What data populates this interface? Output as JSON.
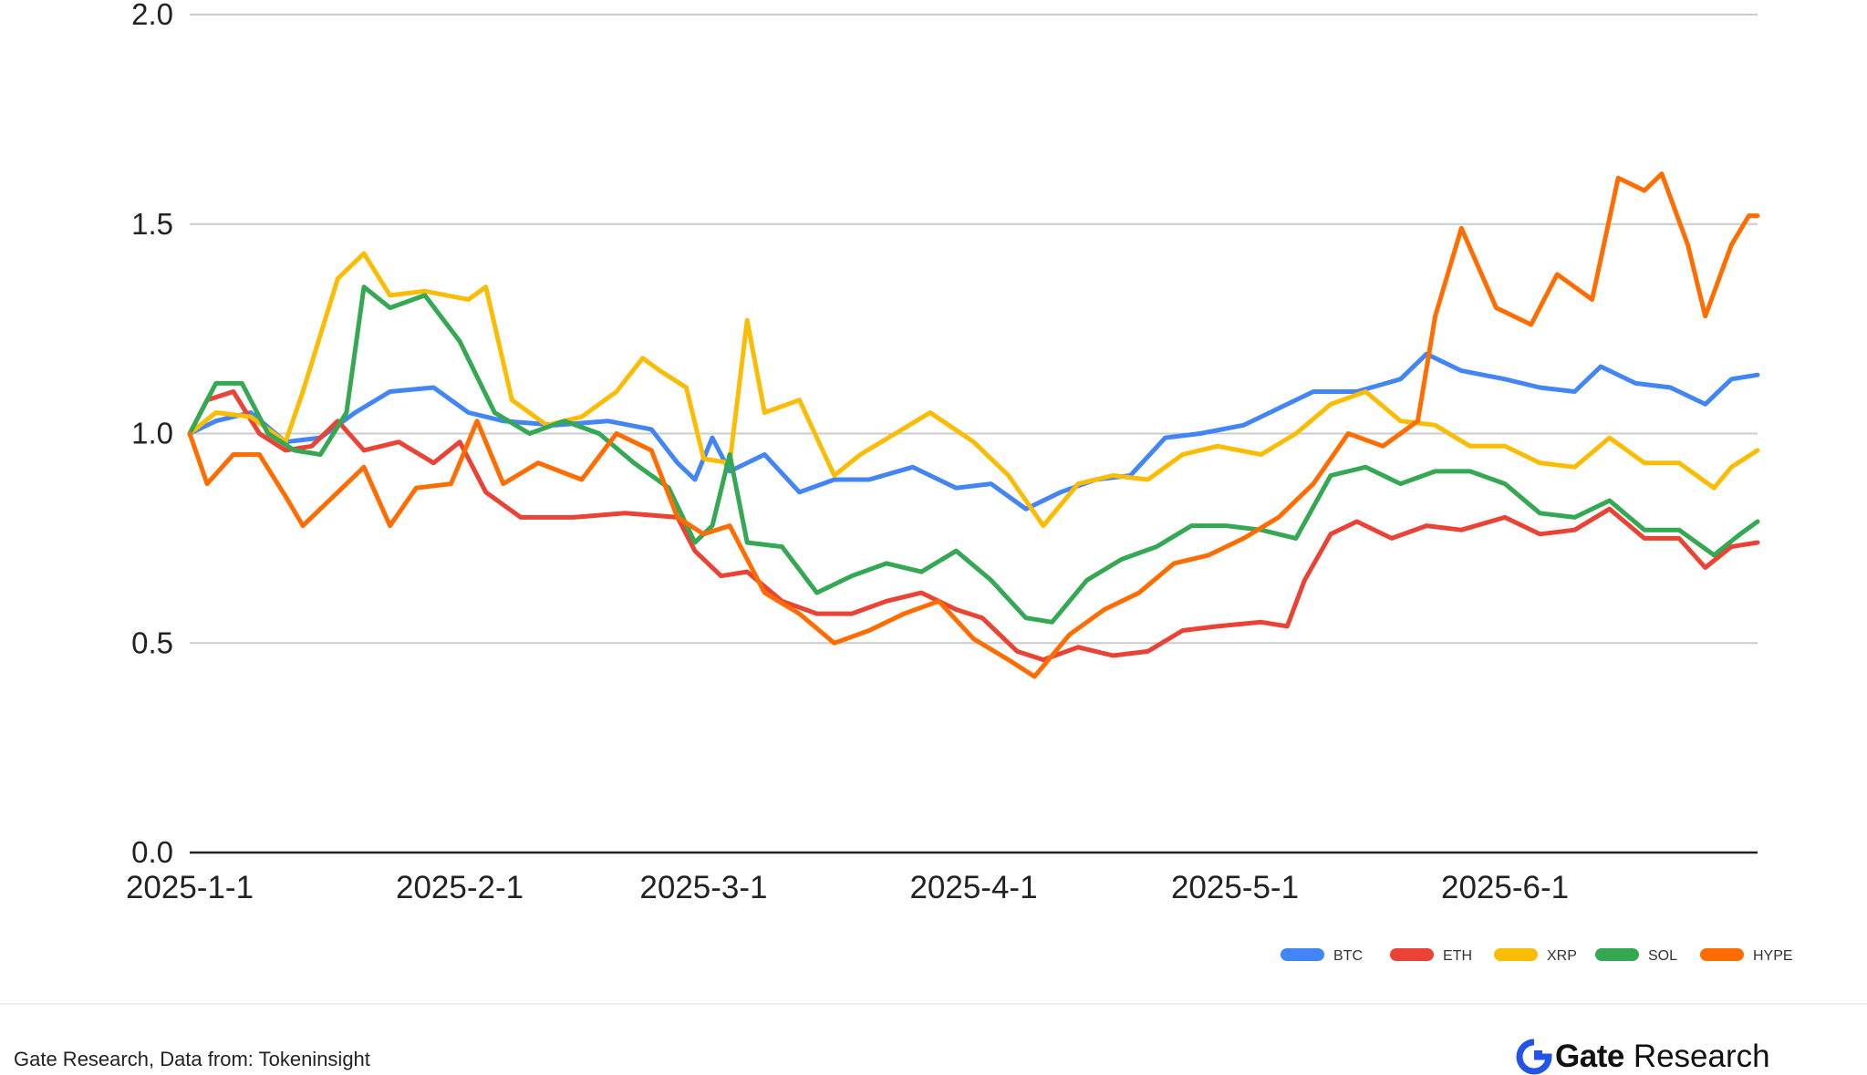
{
  "chart_data": {
    "type": "line",
    "title": "",
    "xlabel": "",
    "ylabel": "",
    "ylim": [
      0,
      2
    ],
    "yticks": [
      "0.0",
      "0.5",
      "1.0",
      "1.5",
      "2.0"
    ],
    "yticks_values": [
      0,
      0.5,
      1.0,
      1.5,
      2.0
    ],
    "xticks": [
      "2025-1-1",
      "2025-2-1",
      "2025-3-1",
      "2025-4-1",
      "2025-5-1",
      "2025-6-1"
    ],
    "xticks_dates": [
      "2025-01-01",
      "2025-02-01",
      "2025-03-01",
      "2025-04-01",
      "2025-05-01",
      "2025-06-01"
    ],
    "xlim": [
      "2025-01-01",
      "2025-06-30"
    ],
    "grid": true,
    "legend_position": "bottom-right",
    "series": [
      {
        "name": "BTC",
        "color": "#4285F4",
        "points": [
          [
            "2025-01-01",
            1.0
          ],
          [
            "2025-01-04",
            1.03
          ],
          [
            "2025-01-08",
            1.05
          ],
          [
            "2025-01-12",
            0.98
          ],
          [
            "2025-01-16",
            0.99
          ],
          [
            "2025-01-20",
            1.05
          ],
          [
            "2025-01-24",
            1.1
          ],
          [
            "2025-01-29",
            1.11
          ],
          [
            "2025-02-02",
            1.05
          ],
          [
            "2025-02-06",
            1.03
          ],
          [
            "2025-02-12",
            1.02
          ],
          [
            "2025-02-18",
            1.03
          ],
          [
            "2025-02-23",
            1.01
          ],
          [
            "2025-02-26",
            0.93
          ],
          [
            "2025-02-28",
            0.89
          ],
          [
            "2025-03-02",
            0.99
          ],
          [
            "2025-03-04",
            0.91
          ],
          [
            "2025-03-08",
            0.95
          ],
          [
            "2025-03-12",
            0.86
          ],
          [
            "2025-03-16",
            0.89
          ],
          [
            "2025-03-20",
            0.89
          ],
          [
            "2025-03-25",
            0.92
          ],
          [
            "2025-03-30",
            0.87
          ],
          [
            "2025-04-03",
            0.88
          ],
          [
            "2025-04-07",
            0.82
          ],
          [
            "2025-04-11",
            0.86
          ],
          [
            "2025-04-15",
            0.89
          ],
          [
            "2025-04-19",
            0.9
          ],
          [
            "2025-04-23",
            0.99
          ],
          [
            "2025-04-27",
            1.0
          ],
          [
            "2025-05-02",
            1.02
          ],
          [
            "2025-05-06",
            1.06
          ],
          [
            "2025-05-10",
            1.1
          ],
          [
            "2025-05-15",
            1.1
          ],
          [
            "2025-05-20",
            1.13
          ],
          [
            "2025-05-23",
            1.19
          ],
          [
            "2025-05-27",
            1.15
          ],
          [
            "2025-06-01",
            1.13
          ],
          [
            "2025-06-05",
            1.11
          ],
          [
            "2025-06-09",
            1.1
          ],
          [
            "2025-06-12",
            1.16
          ],
          [
            "2025-06-16",
            1.12
          ],
          [
            "2025-06-20",
            1.11
          ],
          [
            "2025-06-24",
            1.07
          ],
          [
            "2025-06-27",
            1.13
          ],
          [
            "2025-06-30",
            1.14
          ]
        ]
      },
      {
        "name": "ETH",
        "color": "#EA4335",
        "points": [
          [
            "2025-01-01",
            1.0
          ],
          [
            "2025-01-03",
            1.08
          ],
          [
            "2025-01-06",
            1.1
          ],
          [
            "2025-01-09",
            1.0
          ],
          [
            "2025-01-12",
            0.96
          ],
          [
            "2025-01-15",
            0.97
          ],
          [
            "2025-01-18",
            1.03
          ],
          [
            "2025-01-21",
            0.96
          ],
          [
            "2025-01-25",
            0.98
          ],
          [
            "2025-01-29",
            0.93
          ],
          [
            "2025-02-01",
            0.98
          ],
          [
            "2025-02-04",
            0.86
          ],
          [
            "2025-02-08",
            0.8
          ],
          [
            "2025-02-14",
            0.8
          ],
          [
            "2025-02-20",
            0.81
          ],
          [
            "2025-02-26",
            0.8
          ],
          [
            "2025-02-28",
            0.72
          ],
          [
            "2025-03-03",
            0.66
          ],
          [
            "2025-03-06",
            0.67
          ],
          [
            "2025-03-10",
            0.6
          ],
          [
            "2025-03-14",
            0.57
          ],
          [
            "2025-03-18",
            0.57
          ],
          [
            "2025-03-22",
            0.6
          ],
          [
            "2025-03-26",
            0.62
          ],
          [
            "2025-03-30",
            0.58
          ],
          [
            "2025-04-02",
            0.56
          ],
          [
            "2025-04-06",
            0.48
          ],
          [
            "2025-04-09",
            0.46
          ],
          [
            "2025-04-13",
            0.49
          ],
          [
            "2025-04-17",
            0.47
          ],
          [
            "2025-04-21",
            0.48
          ],
          [
            "2025-04-25",
            0.53
          ],
          [
            "2025-04-29",
            0.54
          ],
          [
            "2025-05-04",
            0.55
          ],
          [
            "2025-05-07",
            0.54
          ],
          [
            "2025-05-09",
            0.65
          ],
          [
            "2025-05-12",
            0.76
          ],
          [
            "2025-05-15",
            0.79
          ],
          [
            "2025-05-19",
            0.75
          ],
          [
            "2025-05-23",
            0.78
          ],
          [
            "2025-05-27",
            0.77
          ],
          [
            "2025-06-01",
            0.8
          ],
          [
            "2025-06-05",
            0.76
          ],
          [
            "2025-06-09",
            0.77
          ],
          [
            "2025-06-13",
            0.82
          ],
          [
            "2025-06-17",
            0.75
          ],
          [
            "2025-06-21",
            0.75
          ],
          [
            "2025-06-24",
            0.68
          ],
          [
            "2025-06-27",
            0.73
          ],
          [
            "2025-06-30",
            0.74
          ]
        ]
      },
      {
        "name": "XRP",
        "color": "#FBBC04",
        "points": [
          [
            "2025-01-01",
            1.0
          ],
          [
            "2025-01-04",
            1.05
          ],
          [
            "2025-01-08",
            1.04
          ],
          [
            "2025-01-12",
            0.98
          ],
          [
            "2025-01-14",
            1.1
          ],
          [
            "2025-01-18",
            1.37
          ],
          [
            "2025-01-21",
            1.43
          ],
          [
            "2025-01-24",
            1.33
          ],
          [
            "2025-01-28",
            1.34
          ],
          [
            "2025-02-02",
            1.32
          ],
          [
            "2025-02-04",
            1.35
          ],
          [
            "2025-02-07",
            1.08
          ],
          [
            "2025-02-11",
            1.02
          ],
          [
            "2025-02-15",
            1.04
          ],
          [
            "2025-02-19",
            1.1
          ],
          [
            "2025-02-22",
            1.18
          ],
          [
            "2025-02-24",
            1.15
          ],
          [
            "2025-02-27",
            1.11
          ],
          [
            "2025-03-01",
            0.94
          ],
          [
            "2025-03-04",
            0.93
          ],
          [
            "2025-03-06",
            1.27
          ],
          [
            "2025-03-08",
            1.05
          ],
          [
            "2025-03-12",
            1.08
          ],
          [
            "2025-03-16",
            0.9
          ],
          [
            "2025-03-19",
            0.95
          ],
          [
            "2025-03-23",
            1.0
          ],
          [
            "2025-03-27",
            1.05
          ],
          [
            "2025-04-01",
            0.98
          ],
          [
            "2025-04-05",
            0.9
          ],
          [
            "2025-04-09",
            0.78
          ],
          [
            "2025-04-13",
            0.88
          ],
          [
            "2025-04-17",
            0.9
          ],
          [
            "2025-04-21",
            0.89
          ],
          [
            "2025-04-25",
            0.95
          ],
          [
            "2025-04-29",
            0.97
          ],
          [
            "2025-05-04",
            0.95
          ],
          [
            "2025-05-08",
            1.0
          ],
          [
            "2025-05-12",
            1.07
          ],
          [
            "2025-05-16",
            1.1
          ],
          [
            "2025-05-20",
            1.03
          ],
          [
            "2025-05-24",
            1.02
          ],
          [
            "2025-05-28",
            0.97
          ],
          [
            "2025-06-01",
            0.97
          ],
          [
            "2025-06-05",
            0.93
          ],
          [
            "2025-06-09",
            0.92
          ],
          [
            "2025-06-13",
            0.99
          ],
          [
            "2025-06-17",
            0.93
          ],
          [
            "2025-06-21",
            0.93
          ],
          [
            "2025-06-25",
            0.87
          ],
          [
            "2025-06-27",
            0.92
          ],
          [
            "2025-06-30",
            0.96
          ]
        ]
      },
      {
        "name": "SOL",
        "color": "#34A853",
        "points": [
          [
            "2025-01-01",
            1.0
          ],
          [
            "2025-01-04",
            1.12
          ],
          [
            "2025-01-07",
            1.12
          ],
          [
            "2025-01-10",
            1.0
          ],
          [
            "2025-01-13",
            0.96
          ],
          [
            "2025-01-16",
            0.95
          ],
          [
            "2025-01-19",
            1.05
          ],
          [
            "2025-01-21",
            1.35
          ],
          [
            "2025-01-24",
            1.3
          ],
          [
            "2025-01-28",
            1.33
          ],
          [
            "2025-02-01",
            1.22
          ],
          [
            "2025-02-05",
            1.05
          ],
          [
            "2025-02-09",
            1.0
          ],
          [
            "2025-02-13",
            1.03
          ],
          [
            "2025-02-17",
            1.0
          ],
          [
            "2025-02-21",
            0.93
          ],
          [
            "2025-02-25",
            0.87
          ],
          [
            "2025-02-28",
            0.74
          ],
          [
            "2025-03-02",
            0.78
          ],
          [
            "2025-03-04",
            0.95
          ],
          [
            "2025-03-06",
            0.74
          ],
          [
            "2025-03-10",
            0.73
          ],
          [
            "2025-03-14",
            0.62
          ],
          [
            "2025-03-18",
            0.66
          ],
          [
            "2025-03-22",
            0.69
          ],
          [
            "2025-03-26",
            0.67
          ],
          [
            "2025-03-30",
            0.72
          ],
          [
            "2025-04-03",
            0.65
          ],
          [
            "2025-04-07",
            0.56
          ],
          [
            "2025-04-10",
            0.55
          ],
          [
            "2025-04-14",
            0.65
          ],
          [
            "2025-04-18",
            0.7
          ],
          [
            "2025-04-22",
            0.73
          ],
          [
            "2025-04-26",
            0.78
          ],
          [
            "2025-04-30",
            0.78
          ],
          [
            "2025-05-04",
            0.77
          ],
          [
            "2025-05-08",
            0.75
          ],
          [
            "2025-05-12",
            0.9
          ],
          [
            "2025-05-16",
            0.92
          ],
          [
            "2025-05-20",
            0.88
          ],
          [
            "2025-05-24",
            0.91
          ],
          [
            "2025-05-28",
            0.91
          ],
          [
            "2025-06-01",
            0.88
          ],
          [
            "2025-06-05",
            0.81
          ],
          [
            "2025-06-09",
            0.8
          ],
          [
            "2025-06-13",
            0.84
          ],
          [
            "2025-06-17",
            0.77
          ],
          [
            "2025-06-21",
            0.77
          ],
          [
            "2025-06-25",
            0.71
          ],
          [
            "2025-06-28",
            0.76
          ],
          [
            "2025-06-30",
            0.79
          ]
        ]
      },
      {
        "name": "HYPE",
        "color": "#FF6D01",
        "points": [
          [
            "2025-01-01",
            1.0
          ],
          [
            "2025-01-03",
            0.88
          ],
          [
            "2025-01-06",
            0.95
          ],
          [
            "2025-01-09",
            0.95
          ],
          [
            "2025-01-12",
            0.85
          ],
          [
            "2025-01-14",
            0.78
          ],
          [
            "2025-01-18",
            0.86
          ],
          [
            "2025-01-21",
            0.92
          ],
          [
            "2025-01-24",
            0.78
          ],
          [
            "2025-01-27",
            0.87
          ],
          [
            "2025-01-31",
            0.88
          ],
          [
            "2025-02-03",
            1.03
          ],
          [
            "2025-02-06",
            0.88
          ],
          [
            "2025-02-10",
            0.93
          ],
          [
            "2025-02-15",
            0.89
          ],
          [
            "2025-02-19",
            1.0
          ],
          [
            "2025-02-23",
            0.96
          ],
          [
            "2025-02-26",
            0.8
          ],
          [
            "2025-03-01",
            0.76
          ],
          [
            "2025-03-04",
            0.78
          ],
          [
            "2025-03-08",
            0.62
          ],
          [
            "2025-03-12",
            0.57
          ],
          [
            "2025-03-16",
            0.5
          ],
          [
            "2025-03-20",
            0.53
          ],
          [
            "2025-03-24",
            0.57
          ],
          [
            "2025-03-28",
            0.6
          ],
          [
            "2025-04-01",
            0.51
          ],
          [
            "2025-04-05",
            0.46
          ],
          [
            "2025-04-08",
            0.42
          ],
          [
            "2025-04-12",
            0.52
          ],
          [
            "2025-04-16",
            0.58
          ],
          [
            "2025-04-20",
            0.62
          ],
          [
            "2025-04-24",
            0.69
          ],
          [
            "2025-04-28",
            0.71
          ],
          [
            "2025-05-02",
            0.75
          ],
          [
            "2025-05-06",
            0.8
          ],
          [
            "2025-05-10",
            0.88
          ],
          [
            "2025-05-14",
            1.0
          ],
          [
            "2025-05-18",
            0.97
          ],
          [
            "2025-05-22",
            1.03
          ],
          [
            "2025-05-24",
            1.28
          ],
          [
            "2025-05-27",
            1.49
          ],
          [
            "2025-05-31",
            1.3
          ],
          [
            "2025-06-04",
            1.26
          ],
          [
            "2025-06-07",
            1.38
          ],
          [
            "2025-06-11",
            1.32
          ],
          [
            "2025-06-14",
            1.61
          ],
          [
            "2025-06-17",
            1.58
          ],
          [
            "2025-06-19",
            1.62
          ],
          [
            "2025-06-22",
            1.45
          ],
          [
            "2025-06-24",
            1.28
          ],
          [
            "2025-06-27",
            1.45
          ],
          [
            "2025-06-29",
            1.52
          ],
          [
            "2025-06-30",
            1.52
          ]
        ]
      }
    ]
  },
  "footer": {
    "source": "Gate Research, Data from: Tokeninsight",
    "brand_name": "Gate",
    "brand_sub": "Research",
    "brand_icon": "gate-logo-icon",
    "brand_color": "#2354E6"
  }
}
